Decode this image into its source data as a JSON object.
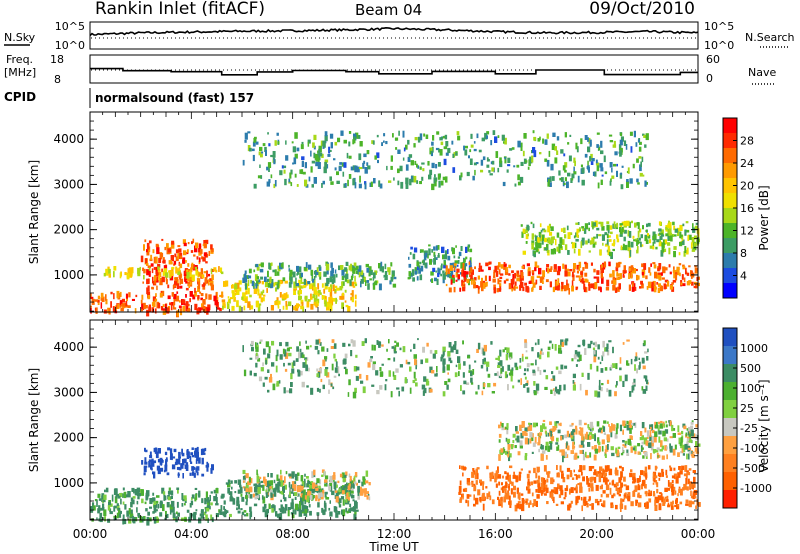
{
  "header": {
    "station": "Rankin Inlet (fitACF)",
    "beam": "Beam 04",
    "date": "09/Oct/2010"
  },
  "noise_panel": {
    "left_label": "N.Sky",
    "right_label": "N.Search",
    "ticks": [
      "10^5",
      "10^0"
    ]
  },
  "freq_panel": {
    "left_label_1": "Freq.",
    "left_label_2": "[MHz]",
    "right_label": "Nave",
    "left_ticks": [
      "18",
      "8"
    ],
    "right_ticks": [
      "60",
      "0"
    ]
  },
  "cpid": {
    "label": "CPID",
    "value": "normalsound (fast) 157"
  },
  "power_colorbar": {
    "label": "Power [dB]",
    "ticks": [
      "28",
      "24",
      "20",
      "16",
      "12",
      "8",
      "4"
    ],
    "colors": [
      "#ff0000",
      "#ff2a00",
      "#ff6a00",
      "#ff9a00",
      "#ffc400",
      "#f0e000",
      "#a8d818",
      "#4cb428",
      "#3c9c64",
      "#2c7cac",
      "#1c4ce0",
      "#0000ff"
    ]
  },
  "velocity_colorbar": {
    "label": "Velocity [m s⁻¹]",
    "ticks": [
      "1000",
      "500",
      "100",
      "25",
      "-25",
      "-100",
      "-500",
      "-1000"
    ],
    "colors": [
      "#2050c0",
      "#3c78c8",
      "#3c8c64",
      "#4cb030",
      "#80d040",
      "#c8c8c0",
      "#ffa040",
      "#ff8020",
      "#ff6000",
      "#ff2000"
    ]
  },
  "chart_data": [
    {
      "type": "line",
      "title": "N.Sky",
      "x_range": [
        "00:00",
        "24:00"
      ],
      "y_scale": "log",
      "y_ticks": [
        "10^0",
        "10^5"
      ],
      "series": [
        {
          "name": "N.Sky",
          "x": [
            0,
            2,
            4,
            6,
            8,
            10,
            12,
            14,
            16,
            18,
            20,
            22,
            24
          ],
          "values": [
            3.2,
            3.6,
            3.8,
            4.0,
            4.1,
            4.3,
            4.6,
            4.3,
            3.9,
            3.6,
            3.7,
            3.9,
            3.6
          ]
        }
      ]
    },
    {
      "type": "line",
      "title": "Freq.",
      "ylabel": "[MHz]",
      "x_range": [
        "00:00",
        "24:00"
      ],
      "ylim": [
        8,
        18
      ],
      "series": [
        {
          "name": "Freq.",
          "x": [
            0,
            0.8,
            1.3,
            3.2,
            5.2,
            6.6,
            8.0,
            10.1,
            11.4,
            13.5,
            16.0,
            17.6,
            20.3,
            23.3,
            24
          ],
          "values": [
            13.6,
            13.6,
            12.7,
            12.3,
            11.0,
            12.2,
            12.8,
            12.3,
            11.4,
            12.4,
            11.4,
            13.0,
            11.1,
            12.0,
            12.0
          ]
        }
      ]
    },
    {
      "type": "heatmap",
      "title": "Power [dB]",
      "xlabel": "",
      "ylabel": "Slant Range [km]",
      "x_ticks": [
        "00:00",
        "04:00",
        "08:00",
        "12:00",
        "16:00",
        "20:00",
        "00:00"
      ],
      "y_ticks": [
        "1000",
        "2000",
        "3000",
        "4000"
      ],
      "ylim": [
        180,
        4600
      ],
      "zlim": [
        0,
        32
      ],
      "regions": [
        {
          "t": [
            0.0,
            5.2
          ],
          "r": [
            200,
            650
          ],
          "value": 28
        },
        {
          "t": [
            2.0,
            4.8
          ],
          "r": [
            700,
            1800
          ],
          "value": 27
        },
        {
          "t": [
            0.5,
            5.2
          ],
          "r": [
            1000,
            1200
          ],
          "value": 18
        },
        {
          "t": [
            5.2,
            10.5
          ],
          "r": [
            300,
            900
          ],
          "value": 19
        },
        {
          "t": [
            6.0,
            12.0
          ],
          "r": [
            800,
            1300
          ],
          "value": 10
        },
        {
          "t": [
            12.5,
            15.0
          ],
          "r": [
            900,
            1700
          ],
          "value": 8
        },
        {
          "t": [
            14.0,
            24.0
          ],
          "r": [
            700,
            1300
          ],
          "value": 27
        },
        {
          "t": [
            17.0,
            24.0
          ],
          "r": [
            1500,
            2200
          ],
          "value": 13
        },
        {
          "t": [
            6.0,
            22.0
          ],
          "r": [
            3000,
            4200
          ],
          "value": 9
        }
      ]
    },
    {
      "type": "heatmap",
      "title": "Velocity [m s⁻¹]",
      "xlabel": "Time UT",
      "ylabel": "Slant Range [km]",
      "x_ticks": [
        "00:00",
        "04:00",
        "08:00",
        "12:00",
        "16:00",
        "20:00",
        "00:00"
      ],
      "y_ticks": [
        "1000",
        "2000",
        "3000",
        "4000"
      ],
      "ylim": [
        180,
        4600
      ],
      "zlim": [
        -1000,
        1000
      ],
      "regions": [
        {
          "t": [
            0.0,
            5.2
          ],
          "r": [
            200,
            900
          ],
          "value": 100
        },
        {
          "t": [
            2.0,
            4.8
          ],
          "r": [
            1200,
            1800
          ],
          "value": 800
        },
        {
          "t": [
            5.2,
            10.5
          ],
          "r": [
            300,
            1100
          ],
          "value": 120
        },
        {
          "t": [
            6.0,
            11.0
          ],
          "r": [
            700,
            1300
          ],
          "value": 0
        },
        {
          "t": [
            14.5,
            24.0
          ],
          "r": [
            500,
            1400
          ],
          "value": -300
        },
        {
          "t": [
            16.0,
            24.0
          ],
          "r": [
            1600,
            2400
          ],
          "value": 0
        },
        {
          "t": [
            6.0,
            22.0
          ],
          "r": [
            3000,
            4200
          ],
          "value": 60
        }
      ]
    }
  ],
  "x_axis": {
    "title": "Time UT",
    "ticks": [
      "00:00",
      "04:00",
      "08:00",
      "12:00",
      "16:00",
      "20:00",
      "00:00"
    ]
  },
  "y_axis": {
    "title": "Slant Range [km]",
    "ticks": [
      "1000",
      "2000",
      "3000",
      "4000"
    ]
  }
}
